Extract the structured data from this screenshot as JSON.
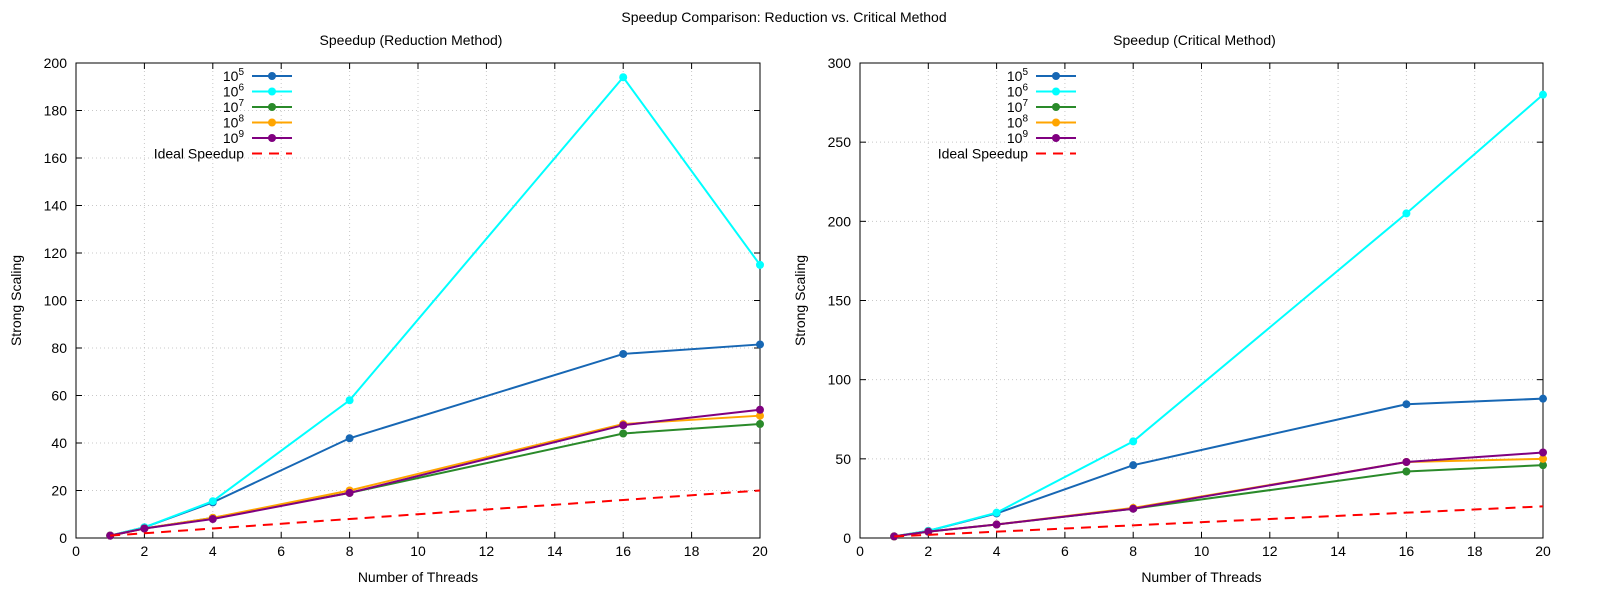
{
  "suptitle": "Speedup Comparison: Reduction vs. Critical Method",
  "chart_data": [
    {
      "type": "line",
      "title": "Speedup (Reduction Method)",
      "xlabel": "Number of Threads",
      "ylabel": "Strong Scaling",
      "xlim": [
        0,
        20
      ],
      "ylim": [
        0,
        200
      ],
      "xticks": [
        0,
        2,
        4,
        6,
        8,
        10,
        12,
        14,
        16,
        18,
        20
      ],
      "yticks": [
        0,
        20,
        40,
        60,
        80,
        100,
        120,
        140,
        160,
        180,
        200
      ],
      "grid": true,
      "legend_position": "top-left",
      "x": [
        1,
        2,
        4,
        8,
        16,
        20
      ],
      "series": [
        {
          "name": "10^5",
          "base": "10",
          "exp": "5",
          "color": "#1767b4",
          "values": [
            1,
            4.5,
            15,
            42,
            77.5,
            81.5
          ]
        },
        {
          "name": "10^6",
          "base": "10",
          "exp": "6",
          "color": "#00ffff",
          "values": [
            1,
            4.5,
            15.5,
            58,
            194,
            115
          ]
        },
        {
          "name": "10^7",
          "base": "10",
          "exp": "7",
          "color": "#2a8a2a",
          "values": [
            1,
            4,
            8.5,
            19,
            44,
            48
          ]
        },
        {
          "name": "10^8",
          "base": "10",
          "exp": "8",
          "color": "#ffa500",
          "values": [
            1,
            4,
            8.5,
            20,
            48,
            51.5
          ]
        },
        {
          "name": "10^9",
          "base": "10",
          "exp": "9",
          "color": "#800080",
          "values": [
            1,
            4,
            8,
            19,
            47.5,
            54
          ]
        },
        {
          "name": "Ideal Speedup",
          "color": "#ff0000",
          "dashed": true,
          "values": [
            1,
            2,
            4,
            8,
            16,
            20
          ]
        }
      ]
    },
    {
      "type": "line",
      "title": "Speedup (Critical Method)",
      "xlabel": "Number of Threads",
      "ylabel": "Strong Scaling",
      "xlim": [
        0,
        20
      ],
      "ylim": [
        0,
        300
      ],
      "xticks": [
        0,
        2,
        4,
        6,
        8,
        10,
        12,
        14,
        16,
        18,
        20
      ],
      "yticks": [
        0,
        50,
        100,
        150,
        200,
        250,
        300
      ],
      "grid": true,
      "legend_position": "top-left",
      "x": [
        1,
        2,
        4,
        8,
        16,
        20
      ],
      "series": [
        {
          "name": "10^5",
          "base": "10",
          "exp": "5",
          "color": "#1767b4",
          "values": [
            1,
            4.5,
            15.5,
            46,
            84.5,
            88
          ]
        },
        {
          "name": "10^6",
          "base": "10",
          "exp": "6",
          "color": "#00ffff",
          "values": [
            1,
            4.5,
            16,
            61,
            205,
            280
          ]
        },
        {
          "name": "10^7",
          "base": "10",
          "exp": "7",
          "color": "#2a8a2a",
          "values": [
            1,
            4,
            8.5,
            18.5,
            42,
            46
          ]
        },
        {
          "name": "10^8",
          "base": "10",
          "exp": "8",
          "color": "#ffa500",
          "values": [
            1,
            4,
            8.5,
            19,
            48,
            50
          ]
        },
        {
          "name": "10^9",
          "base": "10",
          "exp": "9",
          "color": "#800080",
          "values": [
            1,
            4,
            8.5,
            18.5,
            48,
            54
          ]
        },
        {
          "name": "Ideal Speedup",
          "color": "#ff0000",
          "dashed": true,
          "values": [
            1,
            2,
            4,
            8,
            16,
            20
          ]
        }
      ]
    }
  ]
}
